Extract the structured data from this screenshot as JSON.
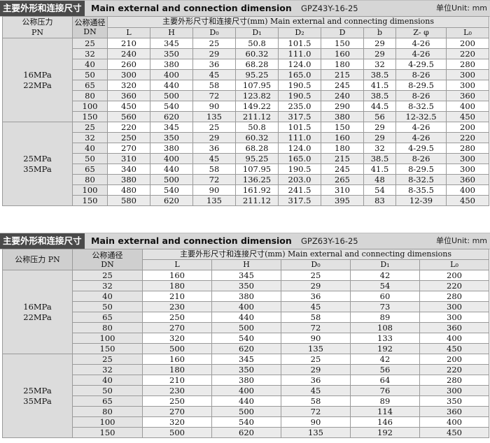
{
  "table1": {
    "title_cn": "主要外形和连接尺寸",
    "title_en": "Main external and connection dimension",
    "model": "GPZ43Y-16-25",
    "unit": "单位Unit: mm",
    "pn_header": "公称压力\nPN",
    "dn_header": "公称通径\nDN",
    "group_header": "主要外形尺寸和连接尺寸(mm) Main external and connecting dimensions",
    "columns": [
      "L",
      "H",
      "D₀",
      "D₁",
      "D₂",
      "D",
      "b",
      "Z- φ",
      "L₀"
    ],
    "groups": [
      {
        "pn": "16MPa\n22MPa",
        "rows": [
          [
            "25",
            "210",
            "345",
            "25",
            "50.8",
            "101.5",
            "150",
            "29",
            "4-26",
            "200"
          ],
          [
            "32",
            "240",
            "350",
            "29",
            "60.32",
            "111.0",
            "160",
            "29",
            "4-26",
            "220"
          ],
          [
            "40",
            "260",
            "380",
            "36",
            "68.28",
            "124.0",
            "180",
            "32",
            "4-29.5",
            "280"
          ],
          [
            "50",
            "300",
            "400",
            "45",
            "95.25",
            "165.0",
            "215",
            "38.5",
            "8-26",
            "300"
          ],
          [
            "65",
            "320",
            "440",
            "58",
            "107.95",
            "190.5",
            "245",
            "41.5",
            "8-29.5",
            "300"
          ],
          [
            "80",
            "360",
            "500",
            "72",
            "123.82",
            "190.5",
            "240",
            "38.5",
            "8-26",
            "360"
          ],
          [
            "100",
            "450",
            "540",
            "90",
            "149.22",
            "235.0",
            "290",
            "44.5",
            "8-32.5",
            "400"
          ],
          [
            "150",
            "560",
            "620",
            "135",
            "211.12",
            "317.5",
            "380",
            "56",
            "12-32.5",
            "450"
          ]
        ]
      },
      {
        "pn": "25MPa\n35MPa",
        "rows": [
          [
            "25",
            "220",
            "345",
            "25",
            "50.8",
            "101.5",
            "150",
            "29",
            "4-26",
            "200"
          ],
          [
            "32",
            "250",
            "350",
            "29",
            "60.32",
            "111.0",
            "160",
            "29",
            "4-26",
            "220"
          ],
          [
            "40",
            "270",
            "380",
            "36",
            "68.28",
            "124.0",
            "180",
            "32",
            "4-29.5",
            "280"
          ],
          [
            "50",
            "310",
            "400",
            "45",
            "95.25",
            "165.0",
            "215",
            "38.5",
            "8-26",
            "300"
          ],
          [
            "65",
            "340",
            "440",
            "58",
            "107.95",
            "190.5",
            "245",
            "41.5",
            "8-29.5",
            "300"
          ],
          [
            "80",
            "380",
            "500",
            "72",
            "136.25",
            "203.0",
            "265",
            "48",
            "8-32.5",
            "360"
          ],
          [
            "100",
            "480",
            "540",
            "90",
            "161.92",
            "241.5",
            "310",
            "54",
            "8-35.5",
            "400"
          ],
          [
            "150",
            "580",
            "620",
            "135",
            "211.12",
            "317.5",
            "395",
            "83",
            "12-39",
            "450"
          ]
        ]
      }
    ]
  },
  "table2": {
    "title_cn": "主要外形和连接尺寸",
    "title_en": "Main external and connection dimension",
    "model": "GPZ63Y-16-25",
    "unit": "单位Unit: mm",
    "pn_header": "公称压力 PN",
    "dn_header": "公称通径\nDN",
    "group_header": "主要外形尺寸和连接尺寸(mm) Main external and connecting dimensions",
    "columns": [
      "L",
      "H",
      "D₀",
      "D₁",
      "L₀"
    ],
    "groups": [
      {
        "pn": "16MPa\n22MPa",
        "rows": [
          [
            "25",
            "160",
            "345",
            "25",
            "42",
            "200"
          ],
          [
            "32",
            "180",
            "350",
            "29",
            "54",
            "220"
          ],
          [
            "40",
            "210",
            "380",
            "36",
            "60",
            "280"
          ],
          [
            "50",
            "230",
            "400",
            "45",
            "73",
            "300"
          ],
          [
            "65",
            "250",
            "440",
            "58",
            "89",
            "300"
          ],
          [
            "80",
            "270",
            "500",
            "72",
            "108",
            "360"
          ],
          [
            "100",
            "320",
            "540",
            "90",
            "133",
            "400"
          ],
          [
            "150",
            "500",
            "620",
            "135",
            "192",
            "450"
          ]
        ]
      },
      {
        "pn": "25MPa\n35MPa",
        "rows": [
          [
            "25",
            "160",
            "345",
            "25",
            "42",
            "200"
          ],
          [
            "32",
            "180",
            "350",
            "29",
            "56",
            "220"
          ],
          [
            "40",
            "210",
            "380",
            "36",
            "64",
            "280"
          ],
          [
            "50",
            "230",
            "400",
            "45",
            "76",
            "300"
          ],
          [
            "65",
            "250",
            "440",
            "58",
            "89",
            "350"
          ],
          [
            "80",
            "270",
            "500",
            "72",
            "114",
            "360"
          ],
          [
            "100",
            "320",
            "540",
            "90",
            "146",
            "400"
          ],
          [
            "150",
            "500",
            "620",
            "135",
            "192",
            "450"
          ]
        ]
      }
    ]
  }
}
